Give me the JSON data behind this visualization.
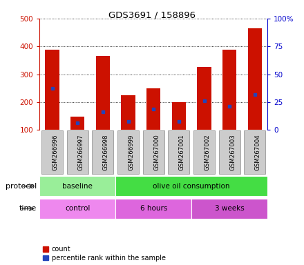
{
  "title": "GDS3691 / 158896",
  "samples": [
    "GSM266996",
    "GSM266997",
    "GSM266998",
    "GSM266999",
    "GSM267000",
    "GSM267001",
    "GSM267002",
    "GSM267003",
    "GSM267004"
  ],
  "bar_bottoms": [
    100,
    100,
    100,
    100,
    100,
    100,
    100,
    100,
    100
  ],
  "bar_tops": [
    387,
    148,
    365,
    224,
    248,
    200,
    327,
    387,
    465
  ],
  "blue_marks": [
    248,
    125,
    165,
    130,
    175,
    130,
    205,
    185,
    228
  ],
  "ylim_left": [
    100,
    500
  ],
  "ylim_right": [
    0,
    100
  ],
  "yticks_left": [
    100,
    200,
    300,
    400,
    500
  ],
  "yticks_right": [
    0,
    25,
    50,
    75,
    100
  ],
  "bar_color": "#cc1100",
  "blue_color": "#2244bb",
  "grid_color": "#000000",
  "protocol_groups": [
    {
      "label": "baseline",
      "start": 0,
      "end": 3,
      "color": "#99ee99"
    },
    {
      "label": "olive oil consumption",
      "start": 3,
      "end": 9,
      "color": "#44dd44"
    }
  ],
  "time_groups": [
    {
      "label": "control",
      "start": 0,
      "end": 3,
      "color": "#ee88ee"
    },
    {
      "label": "6 hours",
      "start": 3,
      "end": 6,
      "color": "#dd66dd"
    },
    {
      "label": "3 weeks",
      "start": 6,
      "end": 9,
      "color": "#cc55cc"
    }
  ],
  "legend_count_label": "count",
  "legend_pct_label": "percentile rank within the sample",
  "protocol_label": "protocol",
  "time_label": "time",
  "background_color": "#ffffff",
  "tick_label_color_left": "#cc1100",
  "tick_label_color_right": "#0000cc",
  "label_area_color": "#cccccc",
  "label_area_border": "#888888"
}
